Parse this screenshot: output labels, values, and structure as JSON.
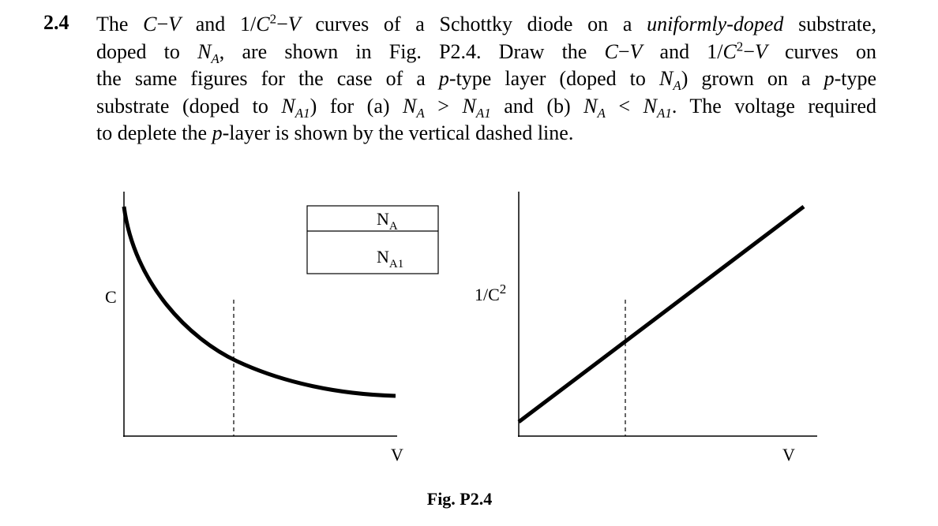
{
  "problem": {
    "number": "2.4",
    "lines": [
      [
        "The ",
        "C",
        "−",
        "V",
        " and 1/",
        "C",
        "2",
        "−",
        "V",
        " curves of a Schottky diode on a ",
        "uniformly-doped",
        " substrate,"
      ],
      [
        "doped to ",
        "N",
        "A",
        ", are shown in Fig. P2.4. Draw the ",
        "C",
        "−",
        "V",
        " and 1/",
        "C",
        "2",
        "−",
        "V",
        " curves on"
      ],
      [
        "the same figures for the case of a ",
        "p",
        "-type layer (doped to ",
        "N",
        "A",
        ") grown on a ",
        "p",
        "-type"
      ],
      [
        "substrate (doped to ",
        "N",
        "A1",
        ") for (a) ",
        "N",
        "A",
        " > ",
        "N",
        "A1",
        " and (b) ",
        "N",
        "A",
        " < ",
        "N",
        "A1",
        ". The voltage required"
      ],
      [
        "to deplete the ",
        "p",
        "-layer is shown by the vertical dashed line."
      ]
    ]
  },
  "figure": {
    "left": {
      "y_label": "C",
      "x_label": "V",
      "legend": [
        [
          "N",
          "A"
        ],
        [
          "N",
          "A1"
        ]
      ]
    },
    "right": {
      "y_label": [
        "1/C",
        "2"
      ],
      "x_label": "V"
    },
    "caption": "Fig. P2.4"
  }
}
